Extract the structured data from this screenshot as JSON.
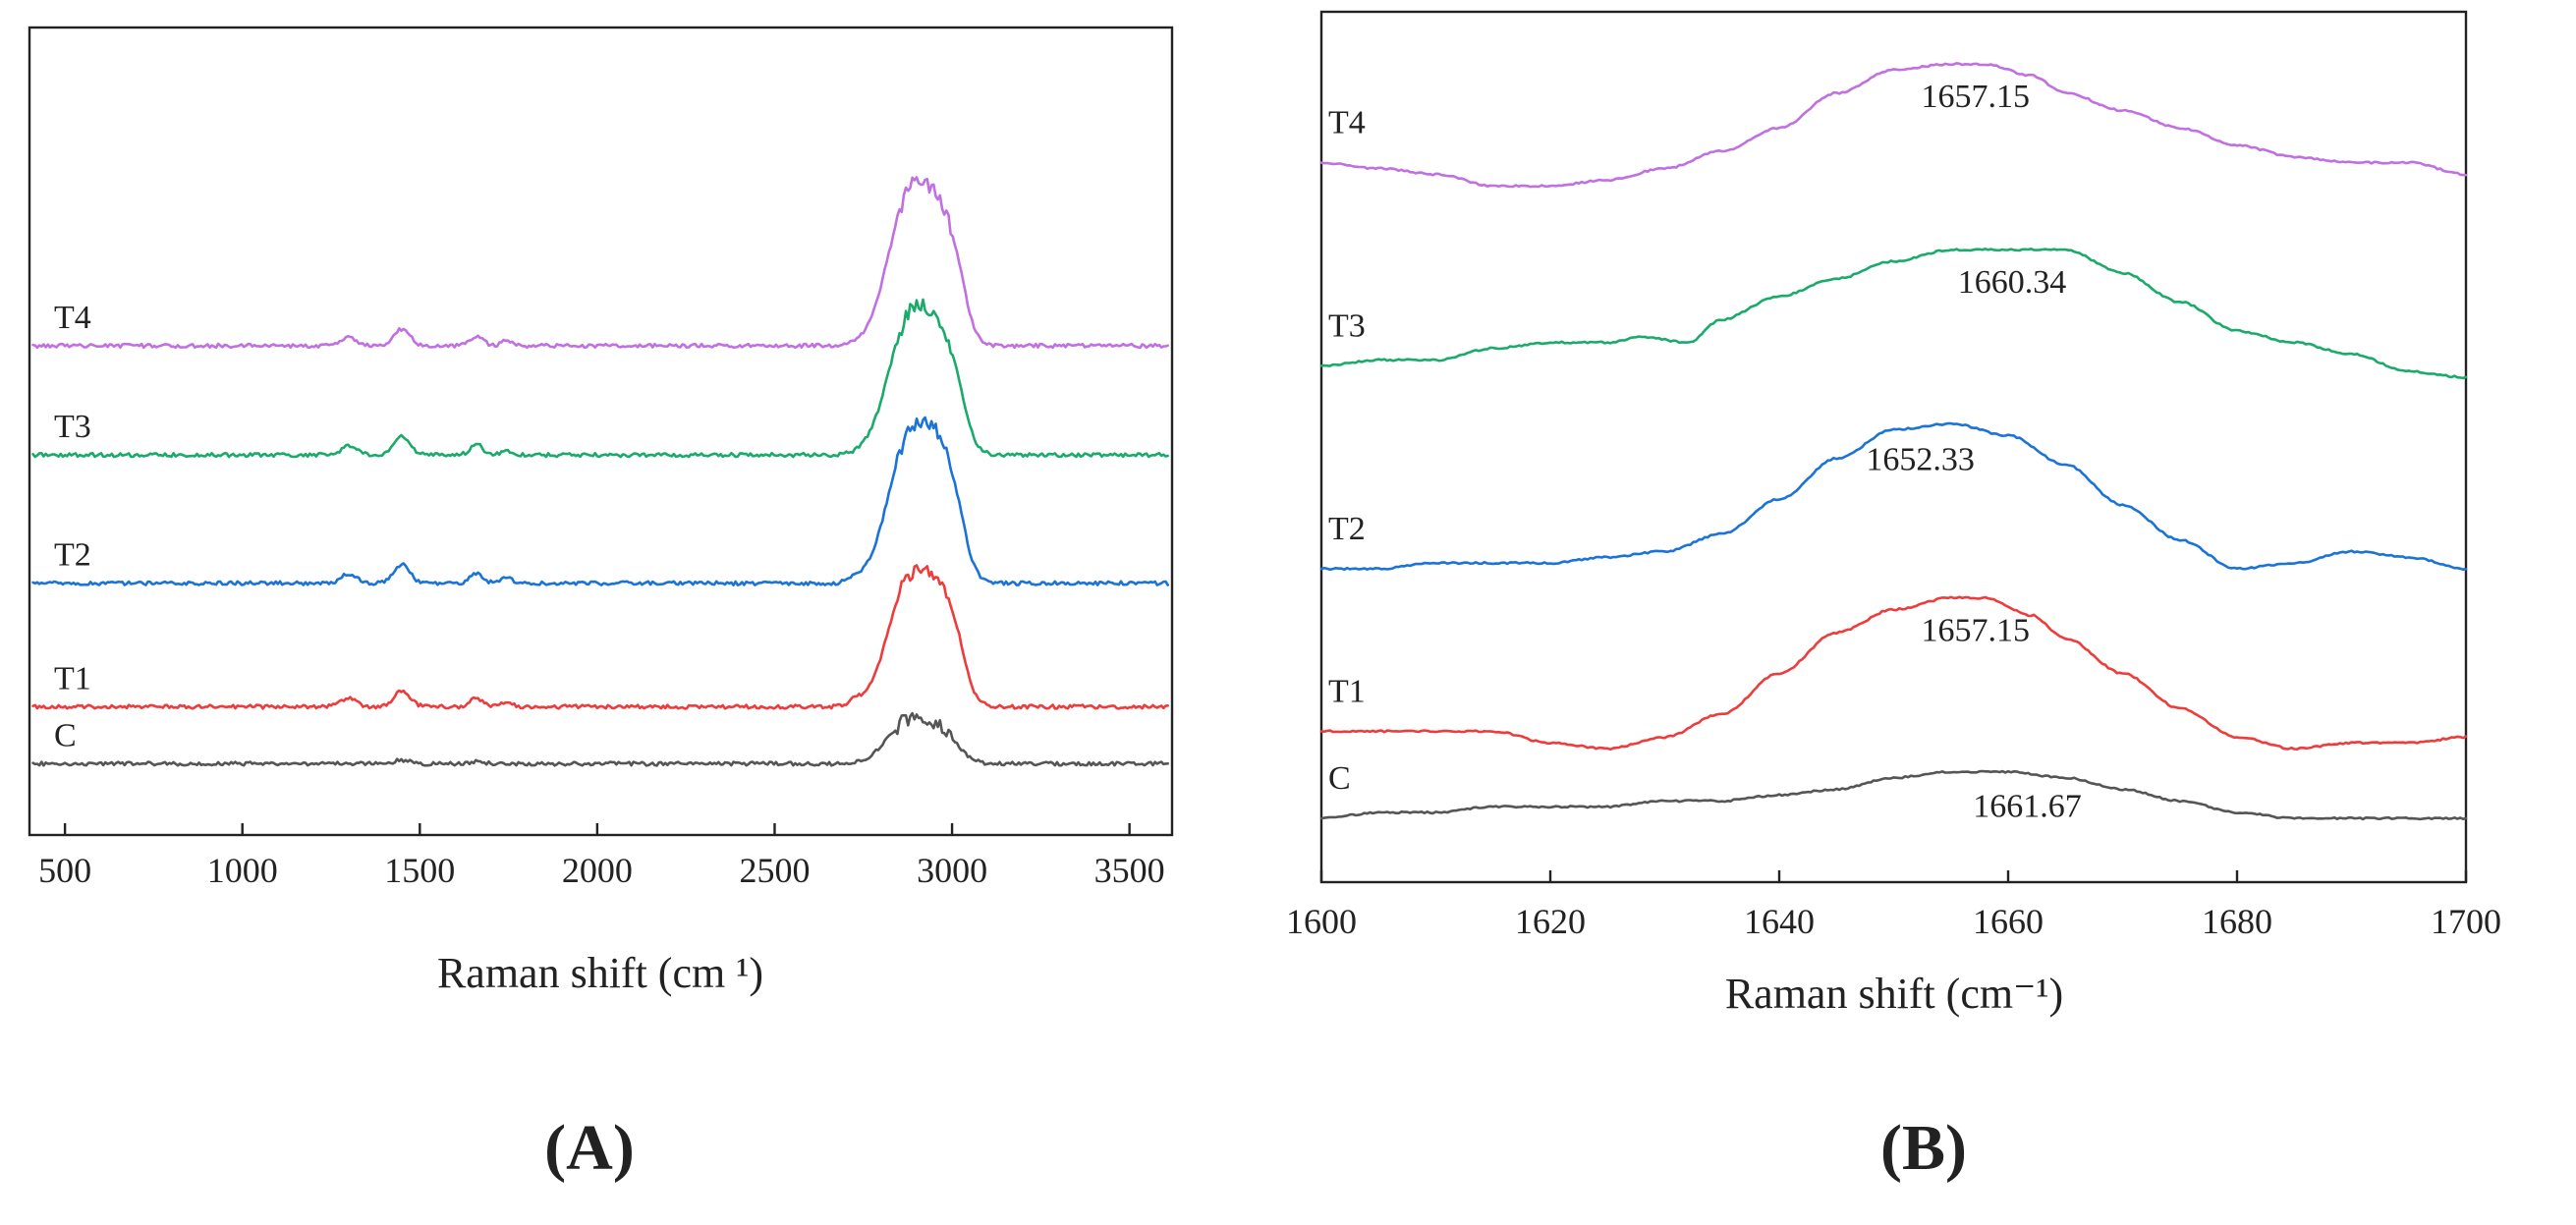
{
  "chart_data": [
    {
      "id": "A",
      "panel_label": "A",
      "type": "line",
      "xlabel": "Raman shift (cm ¹)",
      "ylabel": "",
      "xlim": [
        400,
        3620
      ],
      "xticks": [
        500,
        1000,
        1500,
        2000,
        2500,
        3000,
        3500
      ],
      "yaxis_ticks": "none",
      "stacked_offset": true,
      "grid": false,
      "legend": "none",
      "series": [
        {
          "name": "T4",
          "color": "#c070e0",
          "baseline": 0.67,
          "peaks": [
            [
              1300,
              0.018,
              22
            ],
            [
              1450,
              0.035,
              22
            ],
            [
              1660,
              0.02,
              18
            ],
            [
              1745,
              0.01,
              16
            ],
            [
              2880,
              0.31,
              60
            ],
            [
              2975,
              0.2,
              45
            ],
            [
              3020,
              0.035,
              22
            ]
          ]
        },
        {
          "name": "T3",
          "color": "#1aaa6b",
          "baseline": 0.9,
          "peaks": [
            [
              1300,
              0.018,
              22
            ],
            [
              1450,
              0.04,
              22
            ],
            [
              1660,
              0.022,
              18
            ],
            [
              1745,
              0.01,
              16
            ],
            [
              2880,
              0.28,
              60
            ],
            [
              2975,
              0.18,
              45
            ],
            [
              3020,
              0.03,
              22
            ]
          ]
        },
        {
          "name": "T2",
          "color": "#1a73d8",
          "baseline": 1.17,
          "peaks": [
            [
              1300,
              0.02,
              22
            ],
            [
              1450,
              0.04,
              22
            ],
            [
              1660,
              0.022,
              18
            ],
            [
              1745,
              0.012,
              16
            ],
            [
              2725,
              0.01,
              18
            ],
            [
              2880,
              0.3,
              60
            ],
            [
              2975,
              0.2,
              45
            ],
            [
              3020,
              0.03,
              22
            ]
          ]
        },
        {
          "name": "T1",
          "color": "#ee3b3b",
          "baseline": 1.43,
          "peaks": [
            [
              1300,
              0.018,
              22
            ],
            [
              1450,
              0.035,
              22
            ],
            [
              1660,
              0.018,
              18
            ],
            [
              1745,
              0.01,
              16
            ],
            [
              2725,
              0.01,
              18
            ],
            [
              2880,
              0.26,
              60
            ],
            [
              2975,
              0.17,
              45
            ],
            [
              3020,
              0.03,
              22
            ]
          ]
        },
        {
          "name": "C",
          "color": "#555555",
          "baseline": 1.55,
          "peaks": [
            [
              1450,
              0.008,
              22
            ],
            [
              1660,
              0.005,
              18
            ],
            [
              2880,
              0.09,
              60
            ],
            [
              2975,
              0.05,
              45
            ]
          ]
        }
      ]
    },
    {
      "id": "B",
      "panel_label": "B",
      "type": "line",
      "xlabel": "Raman shift (cm⁻¹)",
      "ylabel": "",
      "xlim": [
        1600,
        1700
      ],
      "xticks": [
        1600,
        1620,
        1640,
        1660,
        1680,
        1700
      ],
      "yaxis_ticks": "none",
      "stacked_offset": true,
      "grid": false,
      "legend": "none",
      "series": [
        {
          "name": "T4",
          "color": "#c070e0",
          "annotation": "1657.15",
          "annotation_x": 1657.15,
          "points": [
            [
              1600,
              0.26
            ],
            [
              1605,
              0.27
            ],
            [
              1610,
              0.28
            ],
            [
              1615,
              0.3
            ],
            [
              1620,
              0.3
            ],
            [
              1625,
              0.29
            ],
            [
              1630,
              0.27
            ],
            [
              1635,
              0.24
            ],
            [
              1640,
              0.2
            ],
            [
              1645,
              0.14
            ],
            [
              1650,
              0.1
            ],
            [
              1655,
              0.09
            ],
            [
              1658,
              0.09
            ],
            [
              1662,
              0.11
            ],
            [
              1665,
              0.14
            ],
            [
              1670,
              0.17
            ],
            [
              1675,
              0.2
            ],
            [
              1680,
              0.23
            ],
            [
              1685,
              0.25
            ],
            [
              1690,
              0.26
            ],
            [
              1695,
              0.26
            ],
            [
              1700,
              0.28
            ]
          ]
        },
        {
          "name": "T3",
          "color": "#1aaa6b",
          "annotation": "1660.34",
          "annotation_x": 1660.34,
          "points": [
            [
              1600,
              0.61
            ],
            [
              1605,
              0.6
            ],
            [
              1610,
              0.6
            ],
            [
              1615,
              0.58
            ],
            [
              1620,
              0.57
            ],
            [
              1625,
              0.57
            ],
            [
              1628,
              0.56
            ],
            [
              1632,
              0.57
            ],
            [
              1635,
              0.53
            ],
            [
              1640,
              0.49
            ],
            [
              1645,
              0.46
            ],
            [
              1650,
              0.43
            ],
            [
              1655,
              0.41
            ],
            [
              1660,
              0.41
            ],
            [
              1665,
              0.41
            ],
            [
              1670,
              0.45
            ],
            [
              1675,
              0.5
            ],
            [
              1680,
              0.55
            ],
            [
              1685,
              0.57
            ],
            [
              1690,
              0.59
            ],
            [
              1695,
              0.62
            ],
            [
              1700,
              0.63
            ]
          ]
        },
        {
          "name": "T2",
          "color": "#1a73d8",
          "annotation": "1652.33",
          "annotation_x": 1652.33,
          "points": [
            [
              1600,
              0.96
            ],
            [
              1605,
              0.96
            ],
            [
              1610,
              0.95
            ],
            [
              1615,
              0.95
            ],
            [
              1620,
              0.95
            ],
            [
              1625,
              0.94
            ],
            [
              1630,
              0.93
            ],
            [
              1635,
              0.9
            ],
            [
              1640,
              0.84
            ],
            [
              1645,
              0.77
            ],
            [
              1650,
              0.72
            ],
            [
              1655,
              0.71
            ],
            [
              1660,
              0.73
            ],
            [
              1665,
              0.78
            ],
            [
              1670,
              0.85
            ],
            [
              1675,
              0.91
            ],
            [
              1680,
              0.96
            ],
            [
              1685,
              0.95
            ],
            [
              1690,
              0.93
            ],
            [
              1695,
              0.94
            ],
            [
              1700,
              0.96
            ]
          ]
        },
        {
          "name": "T1",
          "color": "#ee3b3b",
          "annotation": "1657.15",
          "annotation_x": 1657.15,
          "points": [
            [
              1600,
              1.24
            ],
            [
              1605,
              1.24
            ],
            [
              1610,
              1.24
            ],
            [
              1615,
              1.24
            ],
            [
              1620,
              1.26
            ],
            [
              1625,
              1.27
            ],
            [
              1630,
              1.25
            ],
            [
              1635,
              1.21
            ],
            [
              1640,
              1.14
            ],
            [
              1645,
              1.07
            ],
            [
              1650,
              1.03
            ],
            [
              1655,
              1.01
            ],
            [
              1658,
              1.01
            ],
            [
              1662,
              1.04
            ],
            [
              1665,
              1.08
            ],
            [
              1670,
              1.14
            ],
            [
              1675,
              1.2
            ],
            [
              1680,
              1.25
            ],
            [
              1685,
              1.27
            ],
            [
              1690,
              1.26
            ],
            [
              1695,
              1.26
            ],
            [
              1700,
              1.25
            ]
          ]
        },
        {
          "name": "C",
          "color": "#555555",
          "annotation": "1661.67",
          "annotation_x": 1661.67,
          "points": [
            [
              1600,
              1.39
            ],
            [
              1605,
              1.38
            ],
            [
              1610,
              1.38
            ],
            [
              1615,
              1.37
            ],
            [
              1620,
              1.37
            ],
            [
              1625,
              1.37
            ],
            [
              1630,
              1.36
            ],
            [
              1635,
              1.36
            ],
            [
              1640,
              1.35
            ],
            [
              1645,
              1.34
            ],
            [
              1650,
              1.32
            ],
            [
              1655,
              1.31
            ],
            [
              1660,
              1.31
            ],
            [
              1665,
              1.32
            ],
            [
              1670,
              1.34
            ],
            [
              1675,
              1.36
            ],
            [
              1680,
              1.38
            ],
            [
              1685,
              1.39
            ],
            [
              1690,
              1.39
            ],
            [
              1695,
              1.39
            ],
            [
              1700,
              1.39
            ]
          ]
        }
      ]
    }
  ]
}
